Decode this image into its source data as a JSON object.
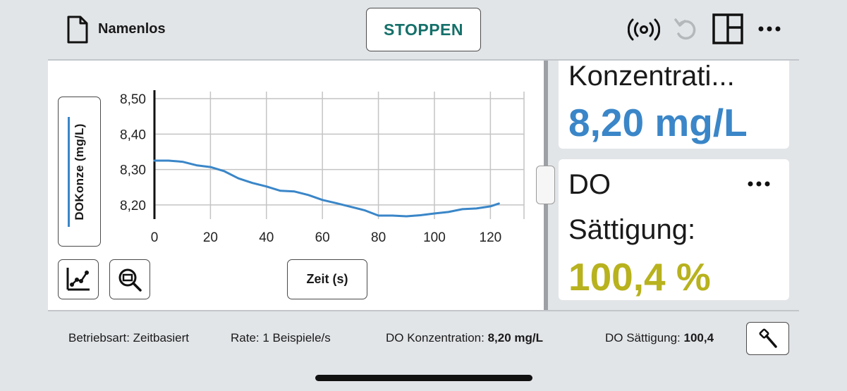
{
  "header": {
    "file_name": "Namenlos",
    "stop_label": "STOPPEN",
    "icons": [
      "file-icon",
      "sensor-broadcast-icon",
      "undo-icon",
      "layout-icon",
      "more-icon"
    ]
  },
  "graph": {
    "ylabel": "DOKonze (mg/L)",
    "xlabel": "Zeit (s)",
    "tools": [
      "graph-tools-icon",
      "zoom-icon"
    ]
  },
  "chart_data": {
    "type": "line",
    "xlabel": "Zeit (s)",
    "ylabel": "DOKonze (mg/L)",
    "xlim": [
      0,
      132
    ],
    "ylim": [
      8.16,
      8.52
    ],
    "x_ticks": [
      0,
      20,
      40,
      60,
      80,
      100,
      120
    ],
    "x_tick_labels": [
      "0",
      "20",
      "40",
      "60",
      "80",
      "100",
      "120"
    ],
    "y_ticks": [
      8.2,
      8.3,
      8.4,
      8.5
    ],
    "y_tick_labels": [
      "8,20",
      "8,30",
      "8,40",
      "8,50"
    ],
    "grid": true,
    "series": [
      {
        "color": "#3a86c8",
        "x": [
          0,
          5,
          10,
          15,
          20,
          25,
          30,
          35,
          40,
          45,
          50,
          55,
          60,
          65,
          70,
          75,
          80,
          85,
          90,
          95,
          100,
          105,
          110,
          115,
          120,
          123
        ],
        "y": [
          8.325,
          8.325,
          8.322,
          8.312,
          8.307,
          8.295,
          8.275,
          8.262,
          8.252,
          8.24,
          8.238,
          8.228,
          8.214,
          8.205,
          8.195,
          8.185,
          8.17,
          8.17,
          8.168,
          8.171,
          8.176,
          8.18,
          8.188,
          8.19,
          8.196,
          8.204
        ]
      }
    ]
  },
  "meters": {
    "concentration": {
      "label": "Konzentrati...",
      "value": "8,20 mg/L",
      "color": "#3a86c8"
    },
    "saturation": {
      "label1": "DO",
      "label2": "Sättigung:",
      "value": "100,4 %",
      "color": "#b8b21e"
    }
  },
  "status": {
    "mode": "Betriebsart: Zeitbasiert",
    "rate": "Rate: 1 Beispiele/s",
    "conc_label": "DO Konzentration:",
    "conc_value": "8,20 mg/L",
    "sat_label": "DO Sättigung:",
    "sat_value": "100,4"
  }
}
